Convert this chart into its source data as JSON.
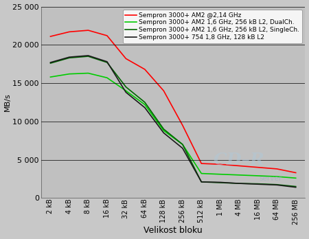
{
  "x_labels": [
    "2 kB",
    "4 kB",
    "8 kB",
    "16 kB",
    "32 kB",
    "64 kB",
    "128 kB",
    "256 kB",
    "512 kB",
    "1 MB",
    "4 MB",
    "16 MB",
    "64 MB",
    "256 MB"
  ],
  "series": [
    {
      "label": "Sempron 3000+ AM2 @2,14 GHz",
      "color": "#ff0000",
      "values": [
        21100,
        21700,
        21900,
        21200,
        18200,
        16800,
        14000,
        9500,
        4500,
        4400,
        4200,
        4000,
        3800,
        3300
      ]
    },
    {
      "label": "Sempron 3000+ AM2 1,6 GHz, 256 kB L2, DualCh.",
      "color": "#00cc00",
      "values": [
        15800,
        16200,
        16300,
        15700,
        14000,
        12200,
        8800,
        7000,
        3200,
        3100,
        3000,
        2900,
        2800,
        2600
      ]
    },
    {
      "label": "Sempron 3000+ AM2 1,6 GHz, 256 kB L2, SingleCh.",
      "color": "#006600",
      "values": [
        17600,
        18300,
        18500,
        17700,
        14500,
        12500,
        9000,
        7000,
        2100,
        2000,
        1900,
        1850,
        1750,
        1500
      ]
    },
    {
      "label": "Sempron 3000+ 754 1,8 GHz, 128 kB L2",
      "color": "#1a1a1a",
      "values": [
        17700,
        18400,
        18600,
        17800,
        13800,
        11800,
        8500,
        6500,
        2100,
        2050,
        1900,
        1800,
        1700,
        1400
      ]
    }
  ],
  "ylabel": "MB/s",
  "xlabel": "Velikost bloku",
  "ylim": [
    0,
    25000
  ],
  "yticks": [
    0,
    5000,
    10000,
    15000,
    20000,
    25000
  ],
  "plot_bg_color": "#c0c0c0",
  "outer_bg_color": "#c8c8c8",
  "legend_bg": "#f5f5f5",
  "grid_color": "#000000"
}
